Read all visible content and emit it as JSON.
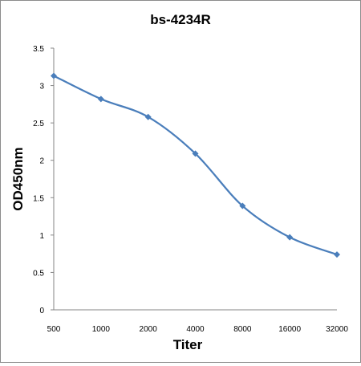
{
  "chart_data": {
    "type": "line",
    "title": "bs-4234R",
    "xlabel": "Titer",
    "ylabel": "OD450nm",
    "categories": [
      "500",
      "1000",
      "2000",
      "4000",
      "8000",
      "16000",
      "32000"
    ],
    "series": [
      {
        "values": [
          3.13,
          2.82,
          2.58,
          2.09,
          1.39,
          0.97,
          0.74
        ],
        "color": "#4a7ebb",
        "marker": "diamond",
        "smooth": true
      }
    ],
    "ylim": [
      0,
      3.5
    ],
    "yticks": [
      0,
      0.5,
      1,
      1.5,
      2,
      2.5,
      3,
      3.5
    ],
    "ytick_labels": [
      "0",
      "0.5",
      "1",
      "1.5",
      "2",
      "2.5",
      "3",
      "3.5"
    ],
    "grid": false,
    "legend": "none"
  }
}
